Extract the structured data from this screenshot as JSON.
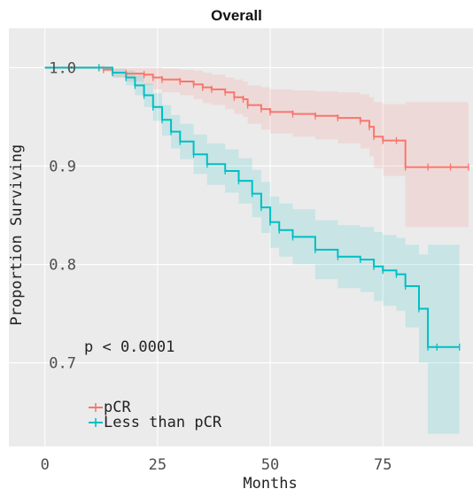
{
  "chart_data": {
    "type": "line",
    "title": "Overall",
    "xlabel": "Months",
    "ylabel": "Proportion Surviving",
    "xlim": [
      -8,
      95
    ],
    "ylim": [
      0.615,
      1.04
    ],
    "x_ticks": [
      0,
      25,
      50,
      75
    ],
    "x_tick_labels": [
      "0",
      "25",
      "50",
      "75"
    ],
    "y_ticks": [
      0.7,
      0.8,
      0.9,
      1.0
    ],
    "y_tick_labels": [
      "0.7",
      "0.8",
      "0.9",
      "1.0"
    ],
    "grid": true,
    "legend_position": "bottom-left",
    "annotation": "p < 0.0001",
    "series": [
      {
        "name": "pCR",
        "color": "#F8766D",
        "x": [
          0,
          12,
          13,
          15,
          18,
          22,
          24,
          26,
          30,
          33,
          35,
          37,
          40,
          42,
          44,
          45,
          48,
          50,
          55,
          60,
          65,
          70,
          72,
          73,
          75,
          78,
          80,
          85,
          90,
          94
        ],
        "y": [
          1.0,
          1.0,
          0.998,
          0.995,
          0.994,
          0.993,
          0.99,
          0.988,
          0.986,
          0.983,
          0.98,
          0.978,
          0.975,
          0.97,
          0.968,
          0.962,
          0.958,
          0.955,
          0.953,
          0.951,
          0.949,
          0.946,
          0.94,
          0.93,
          0.926,
          0.926,
          0.899,
          0.899,
          0.899,
          0.899
        ],
        "ci_upper": [
          1.0,
          1.0,
          1.0,
          1.0,
          1.0,
          1.0,
          1.0,
          0.999,
          0.998,
          0.997,
          0.995,
          0.993,
          0.99,
          0.988,
          0.986,
          0.982,
          0.98,
          0.978,
          0.977,
          0.976,
          0.975,
          0.973,
          0.97,
          0.965,
          0.963,
          0.963,
          0.965,
          0.965,
          0.965,
          0.965
        ],
        "ci_lower": [
          1.0,
          1.0,
          0.996,
          0.99,
          0.986,
          0.982,
          0.978,
          0.975,
          0.972,
          0.968,
          0.964,
          0.962,
          0.958,
          0.953,
          0.95,
          0.943,
          0.937,
          0.933,
          0.93,
          0.927,
          0.923,
          0.918,
          0.91,
          0.898,
          0.89,
          0.89,
          0.838,
          0.838,
          0.838,
          0.838
        ]
      },
      {
        "name": "Less than pCR",
        "color": "#00BFC4",
        "x": [
          0,
          12,
          15,
          18,
          20,
          22,
          24,
          26,
          28,
          30,
          33,
          36,
          40,
          43,
          46,
          48,
          50,
          52,
          55,
          60,
          65,
          70,
          73,
          75,
          78,
          80,
          83,
          85,
          87,
          92
        ],
        "y": [
          1.0,
          1.0,
          0.995,
          0.99,
          0.982,
          0.972,
          0.96,
          0.947,
          0.935,
          0.925,
          0.912,
          0.902,
          0.895,
          0.885,
          0.872,
          0.858,
          0.843,
          0.835,
          0.828,
          0.815,
          0.808,
          0.805,
          0.798,
          0.794,
          0.79,
          0.778,
          0.755,
          0.716,
          0.716,
          0.716
        ],
        "ci_upper": [
          1.0,
          1.0,
          0.999,
          0.997,
          0.992,
          0.984,
          0.974,
          0.962,
          0.952,
          0.943,
          0.932,
          0.923,
          0.917,
          0.908,
          0.896,
          0.884,
          0.869,
          0.862,
          0.856,
          0.845,
          0.84,
          0.838,
          0.833,
          0.83,
          0.827,
          0.82,
          0.81,
          0.82,
          0.82,
          0.82
        ],
        "ci_lower": [
          1.0,
          1.0,
          0.99,
          0.982,
          0.972,
          0.96,
          0.946,
          0.931,
          0.918,
          0.907,
          0.892,
          0.881,
          0.873,
          0.862,
          0.848,
          0.832,
          0.817,
          0.808,
          0.8,
          0.785,
          0.776,
          0.772,
          0.763,
          0.758,
          0.753,
          0.736,
          0.7,
          0.628,
          0.628,
          0.628
        ]
      }
    ]
  }
}
